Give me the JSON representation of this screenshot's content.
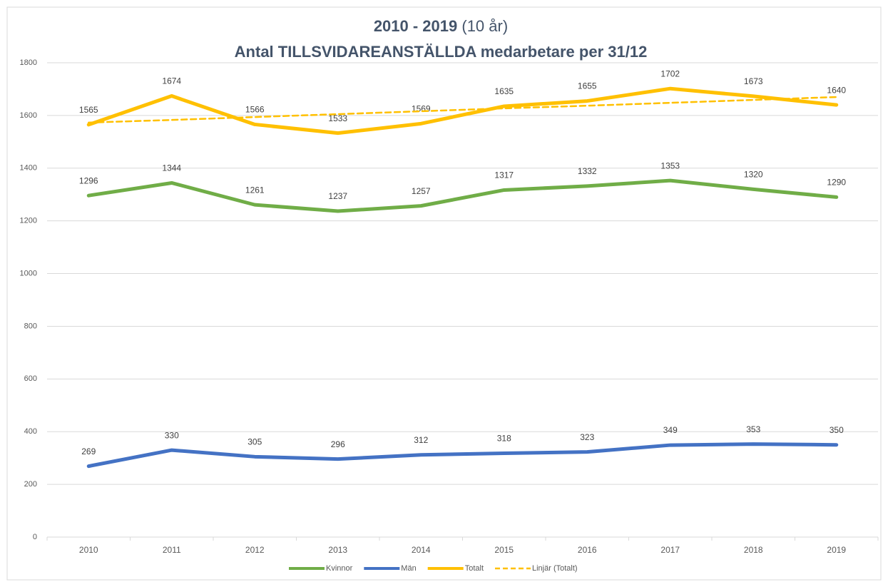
{
  "chart_data": {
    "type": "line",
    "title": "2010 - 2019",
    "title_note": "(10 år)",
    "subtitle": "Antal TILLSVIDAREANSTÄLLDA medarbetare per 31/12",
    "categories": [
      "2010",
      "2011",
      "2012",
      "2013",
      "2014",
      "2015",
      "2016",
      "2017",
      "2018",
      "2019"
    ],
    "series": [
      {
        "name": "Kvinnor",
        "color": "#70ad47",
        "dashed": false,
        "data_labels": true,
        "values": [
          1296,
          1344,
          1261,
          1237,
          1257,
          1317,
          1332,
          1353,
          1320,
          1290
        ]
      },
      {
        "name": "Män",
        "color": "#4472c4",
        "dashed": false,
        "data_labels": true,
        "values": [
          269,
          330,
          305,
          296,
          312,
          318,
          323,
          349,
          353,
          350
        ]
      },
      {
        "name": "Totalt",
        "color": "#ffc000",
        "dashed": false,
        "data_labels": true,
        "values": [
          1565,
          1674,
          1566,
          1533,
          1569,
          1635,
          1655,
          1702,
          1673,
          1640
        ]
      },
      {
        "name": "Linjär (Totalt)",
        "color": "#ffc000",
        "dashed": true,
        "data_labels": false,
        "values": [
          1573,
          1583,
          1594,
          1605,
          1616,
          1627,
          1637,
          1648,
          1659,
          1670
        ]
      }
    ],
    "ylim": [
      0,
      1800
    ],
    "yticks": [
      0,
      200,
      400,
      600,
      800,
      1000,
      1200,
      1400,
      1600,
      1800
    ],
    "grid": true,
    "legend": "bottom"
  }
}
